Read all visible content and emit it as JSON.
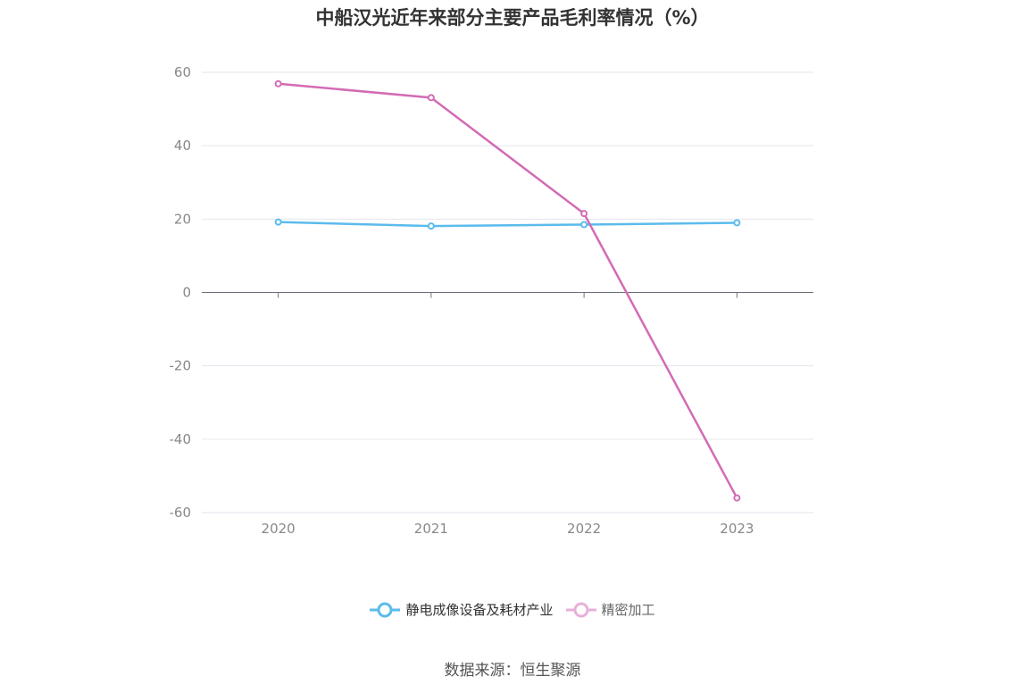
{
  "chart_data": {
    "type": "line",
    "title": "中船汉光近年来部分主要产品毛利率情况（%）",
    "categories": [
      "2020",
      "2021",
      "2022",
      "2023"
    ],
    "series": [
      {
        "name": "静电成像设备及耗材产业",
        "color": "#5bbbec",
        "values": [
          19.2,
          18.1,
          18.5,
          19.0
        ]
      },
      {
        "name": "精密加工",
        "color": "#d36bb4",
        "values": [
          56.9,
          53.1,
          21.5,
          -56.0
        ]
      }
    ],
    "ylim": [
      -60,
      60
    ],
    "yticks": [
      60,
      40,
      20,
      0,
      -20,
      -40,
      -60
    ],
    "grid": true,
    "legend_position": "bottom"
  },
  "footer": {
    "source": "数据来源：恒生聚源"
  }
}
